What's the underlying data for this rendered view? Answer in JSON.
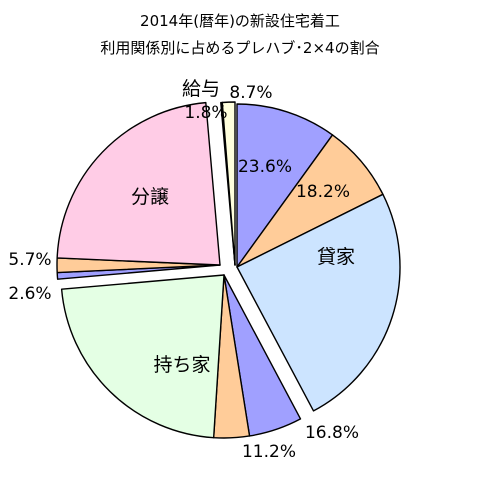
{
  "chart_data": {
    "type": "pie",
    "title": "2014年(暦年)の新設住宅着工",
    "subtitle": "利用関係別に占めるプレハブ･2×4の割合",
    "groups": [
      {
        "name": "貸家",
        "color": "#cce4ff",
        "slices": [
          {
            "label": "23.6%",
            "value": 23.6,
            "color": "#a0a0ff"
          },
          {
            "label": "18.2%",
            "value": 18.2,
            "color": "#ffcc99"
          },
          {
            "label": "",
            "value": 58.2,
            "color": "#cce4ff"
          }
        ]
      },
      {
        "name": "持ち家",
        "color": "#e4ffe4",
        "slices": [
          {
            "label": "16.8%",
            "value": 16.8,
            "color": "#a0a0ff"
          },
          {
            "label": "11.2%",
            "value": 11.2,
            "color": "#ffcc99"
          },
          {
            "label": "",
            "value": 72.0,
            "color": "#e4ffe4"
          }
        ]
      },
      {
        "name": "分譲",
        "color": "#ffcce6",
        "slices": [
          {
            "label": "2.6%",
            "value": 2.6,
            "color": "#a0a0ff"
          },
          {
            "label": "5.7%",
            "value": 5.7,
            "color": "#ffcc99"
          },
          {
            "label": "",
            "value": 91.7,
            "color": "#ffcce6"
          }
        ]
      },
      {
        "name": "給与",
        "color": "#ffffdd",
        "slices": [
          {
            "label": "8.7%",
            "value": 8.7,
            "color": "#a0a0ff"
          },
          {
            "label": "1.8%",
            "value": 1.8,
            "color": "#ffcc99"
          },
          {
            "label": "",
            "value": 89.5,
            "color": "#ffffdd"
          }
        ]
      }
    ]
  }
}
